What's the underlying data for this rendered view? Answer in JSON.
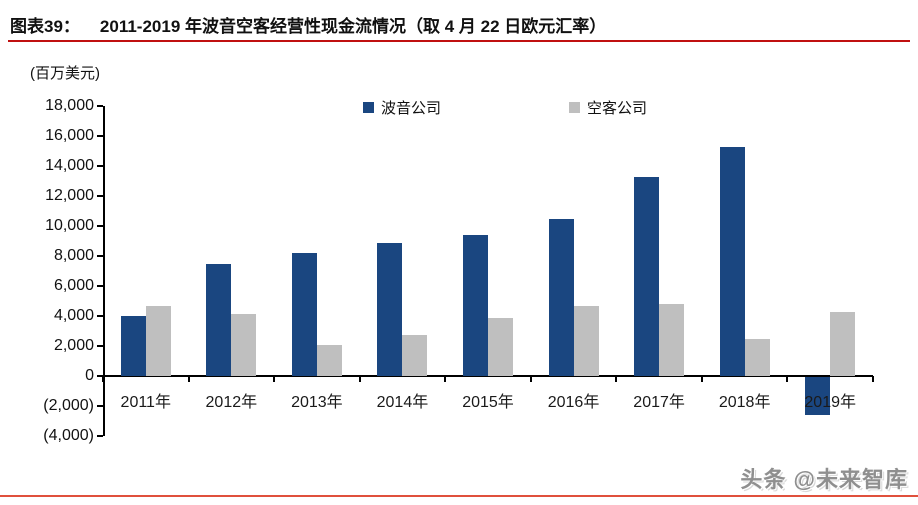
{
  "header": {
    "label": "图表39：",
    "title": "2011-2019 年波音空客经营性现金流情况（取 4 月 22 日欧元汇率）"
  },
  "chart_data": {
    "type": "bar",
    "title": "2011-2019 年波音空客经营性现金流情况（取 4 月 22 日欧元汇率）",
    "ylabel": "(百万美元)",
    "xlabel": "",
    "categories": [
      "2011年",
      "2012年",
      "2013年",
      "2014年",
      "2015年",
      "2016年",
      "2017年",
      "2018年",
      "2019年"
    ],
    "series": [
      {
        "name": "波音公司",
        "color": "#1a4680",
        "values": [
          4000,
          7500,
          8200,
          8900,
          9400,
          10500,
          13300,
          15300,
          -2500
        ]
      },
      {
        "name": "空客公司",
        "color": "#bfbfbf",
        "values": [
          4650,
          4150,
          2050,
          2750,
          3900,
          4700,
          4800,
          2500,
          4250
        ]
      }
    ],
    "ylim": [
      -4000,
      18000
    ],
    "ytick_step": 2000,
    "ytick_labels": [
      "18,000",
      "16,000",
      "14,000",
      "12,000",
      "10,000",
      "8,000",
      "6,000",
      "4,000",
      "2,000",
      "0",
      "(2,000)",
      "(4,000)"
    ],
    "grid": false,
    "legend_position": "top-center"
  },
  "footer": {
    "watermark": "头条 @未来智库"
  },
  "colors": {
    "title_rule_red": "#c01010",
    "bottom_rule_red": "#e0503c",
    "axis_black": "#000000"
  }
}
